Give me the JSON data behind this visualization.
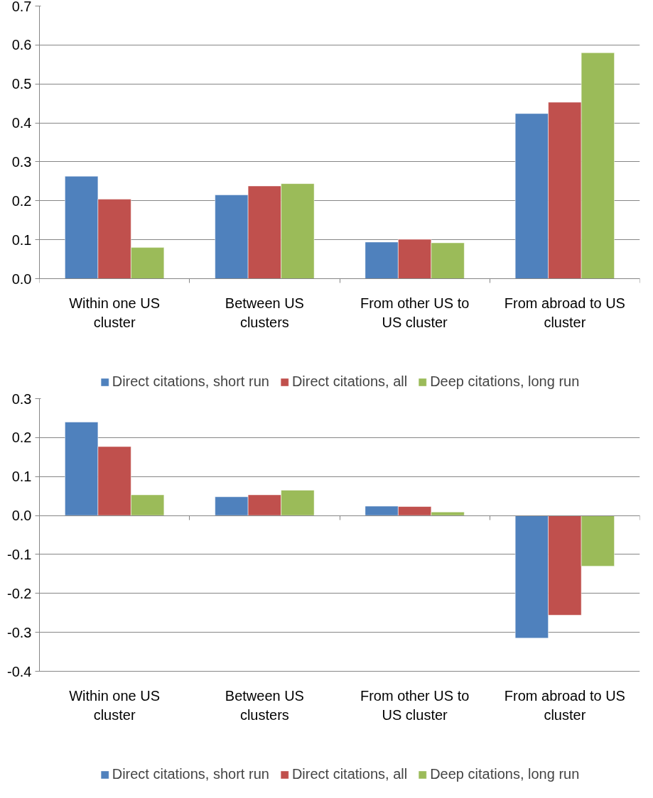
{
  "chart_data": [
    {
      "type": "bar",
      "categories": [
        "Within one US cluster",
        "Between US clusters",
        "From other US to US cluster",
        "From abroad to US cluster"
      ],
      "series": [
        {
          "name": "Direct citations, short run",
          "color": "#4f81bd",
          "values": [
            0.263,
            0.215,
            0.094,
            0.424
          ]
        },
        {
          "name": "Direct citations, all",
          "color": "#c0504d",
          "values": [
            0.204,
            0.238,
            0.101,
            0.453
          ]
        },
        {
          "name": "Deep citations, long run",
          "color": "#9bbb59",
          "values": [
            0.08,
            0.244,
            0.092,
            0.58
          ]
        }
      ],
      "ylim": [
        0,
        0.7
      ],
      "yticks": [
        {
          "value": 0,
          "label": "0.0"
        },
        0.1,
        0.2,
        0.3,
        0.4,
        0.5,
        0.6,
        0.7
      ],
      "grid": "y",
      "legend": "bottom"
    },
    {
      "type": "bar",
      "categories": [
        "Within one US cluster",
        "Between US clusters",
        "From other US to US cluster",
        "From abroad to US cluster"
      ],
      "series": [
        {
          "name": "Direct citations, short run",
          "color": "#4f81bd",
          "values": [
            0.24,
            0.048,
            0.024,
            -0.315
          ]
        },
        {
          "name": "Direct citations, all",
          "color": "#c0504d",
          "values": [
            0.177,
            0.053,
            0.023,
            -0.256
          ]
        },
        {
          "name": "Deep citations, long run",
          "color": "#9bbb59",
          "values": [
            0.053,
            0.065,
            0.009,
            -0.13
          ]
        }
      ],
      "ylim": [
        -0.4,
        0.3
      ],
      "yticks": [
        -0.4,
        -0.3,
        -0.2,
        -0.1,
        {
          "value": 0,
          "label": "0.0"
        },
        0.1,
        0.2,
        0.3
      ],
      "grid": "y",
      "legend": "bottom"
    }
  ]
}
